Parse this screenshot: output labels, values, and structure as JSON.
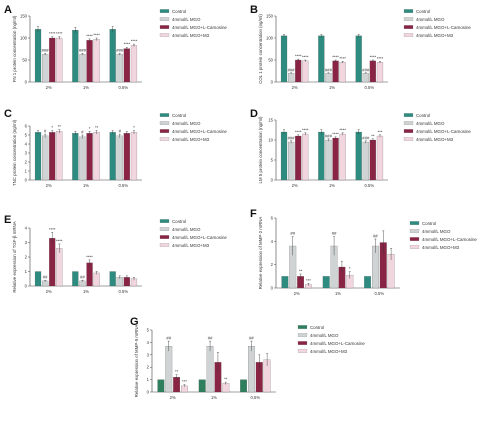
{
  "colors": {
    "teal": "#2e8b7f",
    "lightgray": "#cfd3d3",
    "maroon": "#8a2444",
    "pink": "#f1d6df",
    "green": "#2e7f5e"
  },
  "chart_data": [
    {
      "panel": "A",
      "type": "bar",
      "ylabel": "FN 1 protein concentration (ng/ml)",
      "ylim": [
        0,
        150
      ],
      "yticks": [
        0,
        50,
        100,
        150
      ],
      "categories": [
        "2%",
        "1%",
        "0.5%"
      ],
      "series": [
        {
          "name": "Control",
          "color": "teal",
          "values": [
            120,
            118,
            120
          ],
          "err": [
            6,
            6,
            6
          ],
          "marks": [
            "",
            "",
            ""
          ]
        },
        {
          "name": "4mmol/L MGO",
          "color": "lightgray",
          "values": [
            63,
            63,
            63
          ],
          "err": [
            2,
            2,
            2
          ],
          "marks": [
            "###",
            "###",
            "###"
          ]
        },
        {
          "name": "4mmol/L MGO+L-Carnosine",
          "color": "maroon",
          "values": [
            100,
            95,
            76
          ],
          "err": [
            3,
            3,
            3
          ],
          "marks": [
            "****",
            "****",
            "****"
          ]
        },
        {
          "name": "4mmol/L MGO+M3",
          "color": "pink",
          "values": [
            100,
            97,
            83
          ],
          "err": [
            3,
            3,
            3
          ],
          "marks": [
            "****",
            "****",
            "****"
          ]
        }
      ],
      "legend": [
        "Control",
        "4mmol/L MGO",
        "4mmol/L MGO+L-Carnosine",
        "4mmol/L MGO+M3"
      ]
    },
    {
      "panel": "B",
      "type": "bar",
      "ylabel": "COL 1 protein concentration (ng/ml)",
      "ylim": [
        0,
        150
      ],
      "yticks": [
        0,
        50,
        100,
        150
      ],
      "categories": [
        "2%",
        "1%",
        "0.5%"
      ],
      "series": [
        {
          "name": "Control",
          "color": "teal",
          "values": [
            105,
            105,
            105
          ],
          "err": [
            3,
            3,
            3
          ],
          "marks": [
            "",
            "",
            ""
          ]
        },
        {
          "name": "4mmol/L MGO",
          "color": "lightgray",
          "values": [
            20,
            20,
            20
          ],
          "err": [
            1,
            1,
            1
          ],
          "marks": [
            "###",
            "###",
            "###"
          ]
        },
        {
          "name": "4mmol/L MGO+L-Carnosine",
          "color": "maroon",
          "values": [
            50,
            48,
            48
          ],
          "err": [
            2,
            2,
            2
          ],
          "marks": [
            "****",
            "****",
            "****"
          ]
        },
        {
          "name": "4mmol/L MGO+M3",
          "color": "pink",
          "values": [
            48,
            45,
            45
          ],
          "err": [
            2,
            2,
            2
          ],
          "marks": [
            "****",
            "****",
            "****"
          ]
        }
      ],
      "legend": [
        "Control",
        "4mmol/L MGO",
        "4mmol/L MGO+L-Carnosine",
        "4mmol/L MGO+M3"
      ]
    },
    {
      "panel": "C",
      "type": "bar",
      "ylabel": "TNC protein concentration (ng/ml)",
      "ylim": [
        0,
        6
      ],
      "yticks": [
        0,
        1,
        2,
        3,
        4,
        5,
        6
      ],
      "categories": [
        "2%",
        "1%",
        "0.5%"
      ],
      "series": [
        {
          "name": "Control",
          "color": "teal",
          "values": [
            5.3,
            5.2,
            5.3
          ],
          "err": [
            0.2,
            0.2,
            0.2
          ],
          "marks": [
            "",
            "",
            ""
          ]
        },
        {
          "name": "4mmol/L MGO",
          "color": "lightgray",
          "values": [
            4.9,
            4.8,
            4.9
          ],
          "err": [
            0.2,
            0.2,
            0.2
          ],
          "marks": [
            "#",
            "#",
            "#"
          ]
        },
        {
          "name": "4mmol/L MGO+L-Carnosine",
          "color": "maroon",
          "values": [
            5.3,
            5.2,
            5.2
          ],
          "err": [
            0.2,
            0.2,
            0.2
          ],
          "marks": [
            "*",
            "*",
            ""
          ]
        },
        {
          "name": "4mmol/L MGO+M3",
          "color": "pink",
          "values": [
            5.4,
            5.3,
            5.3
          ],
          "err": [
            0.2,
            0.2,
            0.2
          ],
          "marks": [
            "**",
            "**",
            "*"
          ]
        }
      ],
      "legend": [
        "Control",
        "4mmol/L MGO",
        "4mmol/L MGO+L-Carnosine",
        "4mmol/L MGO+M3"
      ]
    },
    {
      "panel": "D",
      "type": "bar",
      "ylabel": "LM 5 protein concentration (ng/ml)",
      "ylim": [
        0,
        15
      ],
      "yticks": [
        0,
        5,
        10,
        15
      ],
      "categories": [
        "2%",
        "1%",
        "0.5%"
      ],
      "series": [
        {
          "name": "Control",
          "color": "teal",
          "values": [
            12,
            12,
            12
          ],
          "err": [
            0.6,
            0.6,
            0.6
          ],
          "marks": [
            "",
            "",
            ""
          ]
        },
        {
          "name": "4mmol/L MGO",
          "color": "lightgray",
          "values": [
            9.5,
            10,
            9.5
          ],
          "err": [
            0.3,
            0.3,
            0.3
          ],
          "marks": [
            "###",
            "###",
            "###"
          ]
        },
        {
          "name": "4mmol/L MGO+L-Carnosine",
          "color": "maroon",
          "values": [
            11,
            10.5,
            10
          ],
          "err": [
            0.3,
            0.3,
            0.3
          ],
          "marks": [
            "****",
            "****",
            "**"
          ]
        },
        {
          "name": "4mmol/L MGO+M3",
          "color": "pink",
          "values": [
            11.5,
            11.5,
            11
          ],
          "err": [
            0.3,
            0.3,
            0.3
          ],
          "marks": [
            "****",
            "****",
            "***"
          ]
        }
      ],
      "legend": [
        "Control",
        "4mmol/L MGO",
        "4mmol/L MGO+L-Carnosine",
        "4mmol/L MGO+M3"
      ]
    },
    {
      "panel": "E",
      "type": "bar",
      "ylabel": "Relative expression of TGF-β mRNA",
      "ylim": [
        0,
        4
      ],
      "yticks": [
        0,
        1,
        2,
        3,
        4
      ],
      "categories": [
        "2%",
        "1%",
        "0.5%"
      ],
      "series": [
        {
          "name": "Control",
          "color": "teal",
          "values": [
            1,
            1,
            1
          ],
          "err": [
            0,
            0,
            0
          ],
          "marks": [
            "",
            "",
            ""
          ]
        },
        {
          "name": "4mmol/L MGO",
          "color": "lightgray",
          "values": [
            0.35,
            0.35,
            0.6
          ],
          "err": [
            0.05,
            0.05,
            0.1
          ],
          "marks": [
            "##",
            "##",
            ""
          ]
        },
        {
          "name": "4mmol/L MGO+L-Carnosine",
          "color": "maroon",
          "values": [
            3.3,
            1.6,
            0.6
          ],
          "err": [
            0.4,
            0.2,
            0.1
          ],
          "marks": [
            "****",
            "****",
            ""
          ]
        },
        {
          "name": "4mmol/L MGO+M3",
          "color": "pink",
          "values": [
            2.6,
            0.9,
            0.5
          ],
          "err": [
            0.3,
            0.1,
            0.1
          ],
          "marks": [
            "****",
            "",
            ""
          ]
        }
      ],
      "legend": [
        "Control",
        "4mmol/L MGO",
        "4mmol/L MGO+L-Carnosine",
        "4mmol/L MGO+M3"
      ]
    },
    {
      "panel": "F",
      "type": "bar",
      "ylabel": "Relative expression of MMP-2 mRNA",
      "ylim": [
        0,
        6
      ],
      "yticks": [
        0,
        2,
        4,
        6
      ],
      "categories": [
        "2%",
        "1%",
        "0.5%"
      ],
      "series": [
        {
          "name": "Control",
          "color": "teal",
          "values": [
            1,
            1,
            1
          ],
          "err": [
            0,
            0,
            0
          ],
          "marks": [
            "",
            "",
            ""
          ]
        },
        {
          "name": "4mmol/L MGO",
          "color": "lightgray",
          "values": [
            3.6,
            3.6,
            3.6
          ],
          "err": [
            0.8,
            0.8,
            0.6
          ],
          "marks": [
            "##",
            "##",
            "##"
          ]
        },
        {
          "name": "4mmol/L MGO+L-Carnosine",
          "color": "maroon",
          "values": [
            1,
            1.8,
            3.9
          ],
          "err": [
            0.2,
            0.5,
            1.0
          ],
          "marks": [
            "**",
            "",
            ""
          ]
        },
        {
          "name": "4mmol/L MGO+M3",
          "color": "pink",
          "values": [
            0.3,
            1.1,
            2.9
          ],
          "err": [
            0.1,
            0.3,
            0.5
          ],
          "marks": [
            "***",
            "*",
            ""
          ]
        }
      ],
      "legend": [
        "Control",
        "4mmol/L MGO",
        "4mmol/L MGO+L-Carnosine",
        "4mmol/L MGO+M3"
      ]
    },
    {
      "panel": "G",
      "type": "bar",
      "ylabel": "Relative expression of MMP-9 mRNA",
      "ylim": [
        0,
        5
      ],
      "yticks": [
        0,
        1,
        2,
        3,
        4,
        5
      ],
      "categories": [
        "2%",
        "1%",
        "0.5%"
      ],
      "series": [
        {
          "name": "Control",
          "color": "green",
          "values": [
            1,
            1,
            1
          ],
          "err": [
            0,
            0,
            0
          ],
          "marks": [
            "",
            "",
            ""
          ]
        },
        {
          "name": "4mmol/L MGO",
          "color": "lightgray",
          "values": [
            3.7,
            3.7,
            3.7
          ],
          "err": [
            0.4,
            0.4,
            0.4
          ],
          "marks": [
            "##",
            "##",
            "##"
          ]
        },
        {
          "name": "4mmol/L MGO+L-Carnosine",
          "color": "maroon",
          "values": [
            1.2,
            2.4,
            2.4
          ],
          "err": [
            0.2,
            0.8,
            0.6
          ],
          "marks": [
            "**",
            "",
            ""
          ]
        },
        {
          "name": "4mmol/L MGO+M3",
          "color": "pink",
          "values": [
            0.5,
            0.7,
            2.6
          ],
          "err": [
            0.1,
            0.1,
            0.5
          ],
          "marks": [
            "***",
            "**",
            ""
          ]
        }
      ],
      "legend": [
        "Control",
        "4mmol/L MGO",
        "4mmol/L MGO+L-Carnosine",
        "4mmol/L MGO+M3"
      ]
    }
  ]
}
